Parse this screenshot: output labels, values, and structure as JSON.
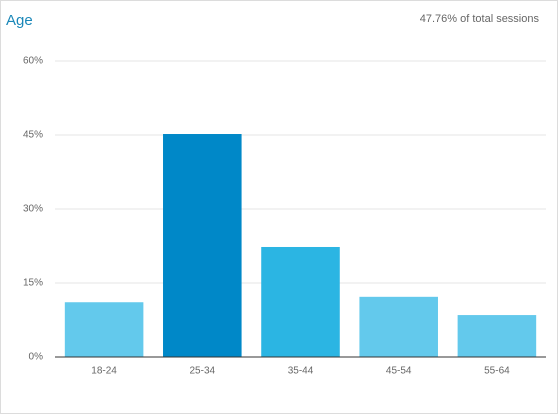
{
  "chart_data": {
    "type": "bar",
    "title": "Age",
    "subtitle": "47.76% of total sessions",
    "categories": [
      "18-24",
      "25-34",
      "35-44",
      "45-54",
      "55-64"
    ],
    "values": [
      11.1,
      45.2,
      22.3,
      12.2,
      8.5
    ],
    "colors": [
      "#63c9ec",
      "#0088c8",
      "#2bb5e3",
      "#63c9ec",
      "#63c9ec"
    ],
    "ylim": [
      0,
      60
    ],
    "yticks": [
      {
        "value": 0,
        "label": "0%"
      },
      {
        "value": 15,
        "label": "15%"
      },
      {
        "value": 30,
        "label": "30%"
      },
      {
        "value": 45,
        "label": "45%"
      },
      {
        "value": 60,
        "label": "60%"
      }
    ],
    "grid": true
  }
}
